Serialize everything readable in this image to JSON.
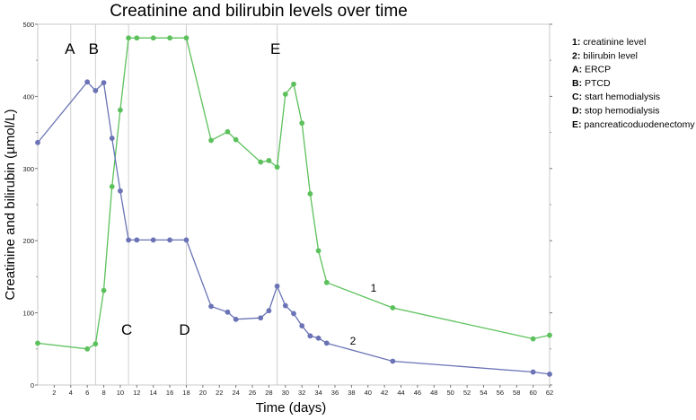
{
  "chart_data": {
    "type": "line",
    "title": "Creatinine and bilirubin levels over time",
    "xlabel": "Time (days)",
    "ylabel": "Creatinine and bilirubin  (µmol/L)",
    "xlim": [
      0,
      62
    ],
    "ylim": [
      0,
      500
    ],
    "xticks": [
      2,
      4,
      6,
      8,
      10,
      12,
      14,
      16,
      18,
      20,
      22,
      24,
      26,
      28,
      30,
      32,
      34,
      36,
      38,
      40,
      42,
      44,
      46,
      48,
      50,
      52,
      54,
      56,
      58,
      60,
      62
    ],
    "yticks": [
      0,
      100,
      200,
      300,
      400,
      500
    ],
    "grid": false,
    "series": [
      {
        "name": "1",
        "color": "#5cc15c",
        "x": [
          0,
          6,
          7,
          8,
          9,
          10,
          11,
          12,
          14,
          16,
          18,
          21,
          23,
          24,
          27,
          28,
          29,
          30,
          31,
          32,
          33,
          34,
          35,
          43,
          60,
          62
        ],
        "y": [
          58,
          50,
          57,
          131,
          275,
          381,
          481,
          481,
          481,
          481,
          481,
          339,
          351,
          340,
          309,
          311,
          302,
          403,
          417,
          363,
          265,
          186,
          142,
          107,
          64,
          69
        ]
      },
      {
        "name": "2",
        "color": "#6a73b5",
        "x": [
          0,
          6,
          7,
          8,
          9,
          10,
          11,
          12,
          14,
          16,
          18,
          21,
          23,
          24,
          27,
          28,
          29,
          30,
          31,
          32,
          33,
          34,
          35,
          43,
          60,
          62
        ],
        "y": [
          336,
          420,
          408,
          419,
          342,
          269,
          201,
          201,
          201,
          201,
          201,
          109,
          101,
          91,
          93,
          103,
          137,
          110,
          99,
          82,
          68,
          65,
          58,
          33,
          18,
          15
        ]
      }
    ],
    "events": [
      {
        "label": "A",
        "x": 4
      },
      {
        "label": "B",
        "x": 7
      },
      {
        "label": "C",
        "x": 11
      },
      {
        "label": "D",
        "x": 18
      },
      {
        "label": "E",
        "x": 29
      }
    ],
    "legend": {
      "placement": "right",
      "items": [
        {
          "key": "1:",
          "text": "creatinine level"
        },
        {
          "key": "2:",
          "text": "bilirubin level"
        },
        {
          "key": "A:",
          "text": "ERCP"
        },
        {
          "key": "B:",
          "text": "PTCD"
        },
        {
          "key": "C:",
          "text": "start hemodialysis"
        },
        {
          "key": "D:",
          "text": "stop hemodialysis"
        },
        {
          "key": "E:",
          "text": "pancreaticoduodenectomy"
        }
      ]
    }
  }
}
